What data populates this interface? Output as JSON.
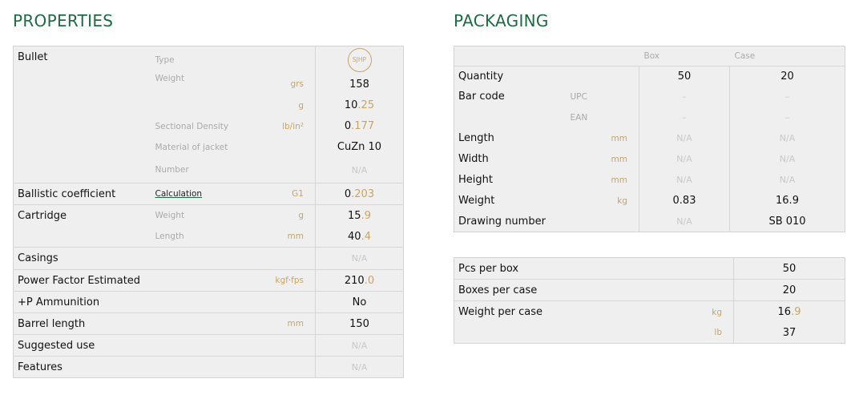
{
  "properties": {
    "title": "PROPERTIES",
    "bullet": {
      "label": "Bullet",
      "type_label": "Type",
      "type_badge": "SJHP",
      "weight_label": "Weight",
      "weight_grs_unit": "grs",
      "weight_grs": "158",
      "weight_g_unit": "g",
      "weight_g": "10.25",
      "sd_label": "Sectional Density",
      "sd_unit": "lb/in²",
      "sd": "0.177",
      "jacket_label": "Material of jacket",
      "jacket": "CuZn 10",
      "number_label": "Number",
      "number": "N/A"
    },
    "bc": {
      "label": "Ballistic coefficient",
      "link": "Calculation",
      "unit": "G1",
      "value": "0.203"
    },
    "cartridge": {
      "label": "Cartridge",
      "weight_label": "Weight",
      "weight_unit": "g",
      "weight": "15.9",
      "length_label": "Length",
      "length_unit": "mm",
      "length": "40.4"
    },
    "casings": {
      "label": "Casings",
      "value": "N/A"
    },
    "power": {
      "label": "Power Factor Estimated",
      "unit": "kgf·fps",
      "value": "210.0"
    },
    "plusp": {
      "label": "+P Ammunition",
      "value": "No"
    },
    "barrel": {
      "label": "Barrel length",
      "unit": "mm",
      "value": "150"
    },
    "use": {
      "label": "Suggested use",
      "value": "N/A"
    },
    "features": {
      "label": "Features",
      "value": "N/A"
    }
  },
  "packaging": {
    "title": "PACKAGING",
    "col_box": "Box",
    "col_case": "Case",
    "rows": [
      {
        "label": "Quantity",
        "sub": "",
        "unit": "",
        "box": "50",
        "case": "20"
      },
      {
        "label": "Bar code",
        "sub": "UPC",
        "unit": "",
        "box": "–",
        "case": "–"
      },
      {
        "label": "",
        "sub": "EAN",
        "unit": "",
        "box": "–",
        "case": "–"
      },
      {
        "label": "Length",
        "sub": "",
        "unit": "mm",
        "box": "N/A",
        "case": "N/A"
      },
      {
        "label": "Width",
        "sub": "",
        "unit": "mm",
        "box": "N/A",
        "case": "N/A"
      },
      {
        "label": "Height",
        "sub": "",
        "unit": "mm",
        "box": "N/A",
        "case": "N/A"
      },
      {
        "label": "Weight",
        "sub": "",
        "unit": "kg",
        "box": "0.83",
        "case": "16.9"
      },
      {
        "label": "Drawing number",
        "sub": "",
        "unit": "",
        "box": "N/A",
        "case": "SB 010"
      }
    ],
    "summary": {
      "pcs_label": "Pcs per box",
      "pcs": "50",
      "boxes_label": "Boxes per case",
      "boxes": "20",
      "wpc_label": "Weight per case",
      "wpc_kg_unit": "kg",
      "wpc_kg": "16.9",
      "wpc_lb_unit": "lb",
      "wpc_lb": "37"
    }
  },
  "colors": {
    "title": "#1e6b43",
    "accent": "#c9a467",
    "background": "#efefef"
  }
}
